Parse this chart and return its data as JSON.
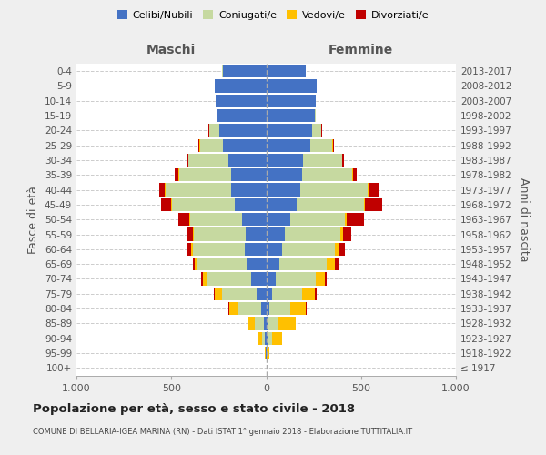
{
  "age_groups": [
    "100+",
    "95-99",
    "90-94",
    "85-89",
    "80-84",
    "75-79",
    "70-74",
    "65-69",
    "60-64",
    "55-59",
    "50-54",
    "45-49",
    "40-44",
    "35-39",
    "30-34",
    "25-29",
    "20-24",
    "15-19",
    "10-14",
    "5-9",
    "0-4"
  ],
  "birth_years": [
    "≤ 1917",
    "1918-1922",
    "1923-1927",
    "1928-1932",
    "1933-1937",
    "1938-1942",
    "1943-1947",
    "1948-1952",
    "1953-1957",
    "1958-1962",
    "1963-1967",
    "1968-1972",
    "1973-1977",
    "1978-1982",
    "1983-1987",
    "1988-1992",
    "1993-1997",
    "1998-2002",
    "2003-2007",
    "2008-2012",
    "2013-2017"
  ],
  "male_celibe": [
    0,
    2,
    5,
    10,
    28,
    50,
    80,
    105,
    115,
    110,
    125,
    165,
    185,
    185,
    200,
    230,
    245,
    255,
    265,
    270,
    230
  ],
  "male_coniugato": [
    0,
    2,
    15,
    50,
    125,
    185,
    235,
    255,
    270,
    270,
    275,
    330,
    345,
    275,
    210,
    120,
    55,
    5,
    2,
    1,
    1
  ],
  "male_vedovo": [
    0,
    3,
    20,
    40,
    40,
    35,
    20,
    15,
    10,
    5,
    5,
    5,
    5,
    3,
    2,
    1,
    1,
    0,
    0,
    0,
    0
  ],
  "male_divorziato": [
    0,
    0,
    0,
    0,
    5,
    5,
    10,
    10,
    20,
    28,
    60,
    55,
    30,
    20,
    10,
    5,
    3,
    2,
    0,
    0,
    0
  ],
  "female_celibe": [
    0,
    2,
    5,
    12,
    18,
    30,
    50,
    70,
    85,
    100,
    125,
    160,
    180,
    190,
    195,
    235,
    240,
    255,
    260,
    265,
    210
  ],
  "female_coniugato": [
    0,
    2,
    25,
    55,
    110,
    160,
    210,
    250,
    275,
    290,
    290,
    355,
    355,
    265,
    205,
    115,
    50,
    5,
    2,
    1,
    1
  ],
  "female_vedovo": [
    3,
    15,
    55,
    90,
    80,
    65,
    50,
    40,
    25,
    15,
    10,
    5,
    3,
    2,
    1,
    1,
    1,
    0,
    0,
    0,
    0
  ],
  "female_divorziato": [
    0,
    0,
    0,
    0,
    5,
    10,
    10,
    20,
    30,
    45,
    90,
    90,
    55,
    20,
    10,
    5,
    3,
    2,
    0,
    0,
    0
  ],
  "color_celibe": "#4472c4",
  "color_coniugato": "#c6d9a0",
  "color_vedovo": "#ffc000",
  "color_divorziato": "#c00000",
  "title": "Popolazione per età, sesso e stato civile - 2018",
  "subtitle": "COMUNE DI BELLARIA-IGEA MARINA (RN) - Dati ISTAT 1° gennaio 2018 - Elaborazione TUTTITALIA.IT",
  "ylabel_left": "Fasce di età",
  "ylabel_right": "Anni di nascita",
  "xlabel_left": "Maschi",
  "xlabel_right": "Femmine",
  "xlim": 1000,
  "bg_color": "#efefef",
  "plot_bg_color": "#ffffff"
}
